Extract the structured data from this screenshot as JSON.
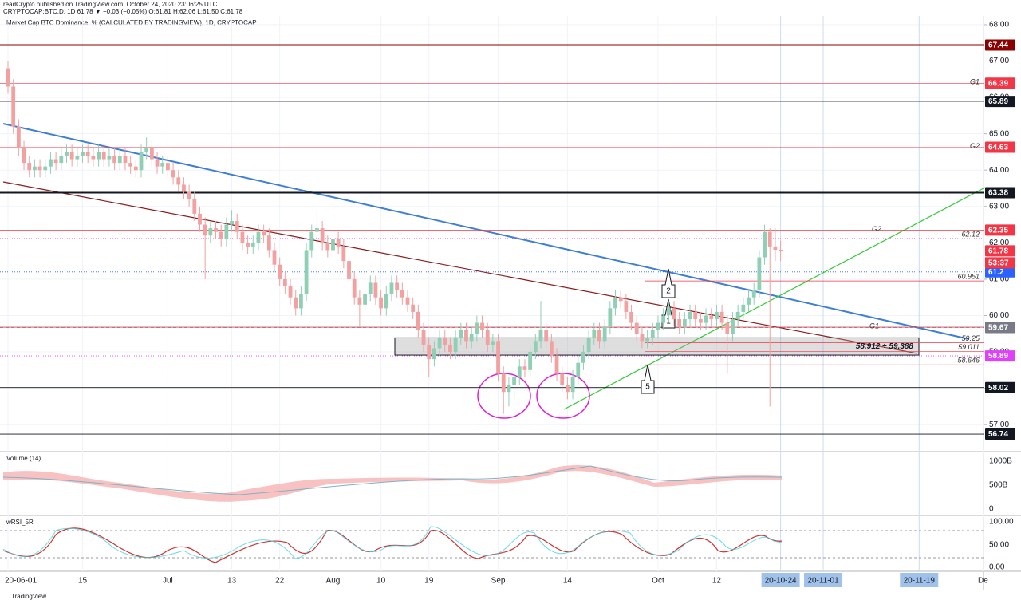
{
  "header": {
    "publisher": "readCrypto published on TradingView.com, October 24, 2020 23:06:25 UTC",
    "symbol_line": "CRYPTOCAP:BTC.D, 1D 61.78 ▼ −0.03 (−0.05%) O:61.81 H:62.06 L:61.50 C:61.78",
    "indicator": "Market Cap BTC Dominance, % (CALCULATED BY TRADINGVIEW), 1D, CRYPTOCAP"
  },
  "chart_data": {
    "type": "candlestick",
    "up_color": "#8fcfb5",
    "down_color": "#f2a0a0",
    "candles": [
      [
        66.8,
        67.0,
        66.1,
        66.3
      ],
      [
        66.3,
        66.5,
        65.0,
        65.2
      ],
      [
        65.2,
        65.4,
        64.4,
        64.6
      ],
      [
        64.6,
        64.8,
        64.0,
        64.2
      ],
      [
        64.2,
        64.4,
        63.8,
        64.0
      ],
      [
        64.0,
        64.3,
        63.8,
        64.1
      ],
      [
        64.1,
        64.3,
        63.8,
        64.0
      ],
      [
        64.0,
        64.3,
        63.8,
        64.1
      ],
      [
        64.1,
        64.5,
        63.9,
        64.3
      ],
      [
        64.3,
        64.5,
        64.0,
        64.2
      ],
      [
        64.2,
        64.6,
        64.0,
        64.4
      ],
      [
        64.4,
        64.7,
        64.2,
        64.5
      ],
      [
        64.5,
        64.7,
        64.1,
        64.3
      ],
      [
        64.3,
        64.6,
        64.1,
        64.4
      ],
      [
        64.4,
        64.7,
        64.2,
        64.5
      ],
      [
        64.5,
        64.7,
        64.2,
        64.4
      ],
      [
        64.4,
        64.6,
        64.1,
        64.3
      ],
      [
        64.3,
        64.7,
        64.1,
        64.5
      ],
      [
        64.5,
        64.7,
        64.1,
        64.3
      ],
      [
        64.3,
        64.6,
        64.1,
        64.4
      ],
      [
        64.4,
        64.6,
        64.0,
        64.2
      ],
      [
        64.2,
        64.6,
        64.0,
        64.4
      ],
      [
        64.4,
        64.6,
        64.0,
        64.2
      ],
      [
        64.2,
        64.4,
        63.9,
        64.1
      ],
      [
        64.1,
        64.3,
        63.8,
        64.0
      ],
      [
        64.0,
        64.7,
        63.8,
        64.5
      ],
      [
        64.5,
        64.9,
        64.3,
        64.6
      ],
      [
        64.6,
        64.8,
        64.1,
        64.3
      ],
      [
        64.3,
        64.5,
        63.9,
        64.1
      ],
      [
        64.1,
        64.4,
        63.9,
        64.2
      ],
      [
        64.2,
        64.4,
        63.8,
        64.0
      ],
      [
        64.0,
        64.2,
        63.6,
        63.8
      ],
      [
        63.8,
        64.0,
        63.4,
        63.6
      ],
      [
        63.6,
        63.8,
        63.2,
        63.4
      ],
      [
        63.4,
        63.6,
        63.0,
        63.2
      ],
      [
        63.2,
        63.4,
        62.6,
        62.8
      ],
      [
        62.8,
        63.0,
        62.3,
        62.5
      ],
      [
        62.5,
        62.7,
        61.0,
        62.2
      ],
      [
        62.2,
        62.6,
        62.0,
        62.4
      ],
      [
        62.4,
        62.6,
        62.1,
        62.3
      ],
      [
        62.3,
        62.5,
        61.9,
        62.1
      ],
      [
        62.1,
        62.7,
        61.9,
        62.5
      ],
      [
        62.5,
        62.9,
        62.3,
        62.6
      ],
      [
        62.6,
        62.8,
        62.1,
        62.3
      ],
      [
        62.3,
        62.5,
        61.8,
        62.0
      ],
      [
        62.0,
        62.2,
        61.7,
        61.9
      ],
      [
        61.9,
        62.2,
        61.7,
        62.0
      ],
      [
        62.0,
        62.5,
        61.8,
        62.3
      ],
      [
        62.3,
        62.5,
        62.0,
        62.2
      ],
      [
        62.2,
        62.4,
        61.6,
        61.8
      ],
      [
        61.8,
        62.0,
        61.2,
        61.4
      ],
      [
        61.4,
        61.6,
        60.8,
        61.0
      ],
      [
        61.0,
        61.2,
        60.6,
        60.8
      ],
      [
        60.8,
        61.0,
        60.3,
        60.5
      ],
      [
        60.5,
        60.7,
        60.0,
        60.2
      ],
      [
        60.2,
        60.8,
        60.0,
        60.6
      ],
      [
        60.6,
        62.0,
        60.4,
        61.8
      ],
      [
        61.8,
        62.5,
        61.6,
        62.3
      ],
      [
        62.3,
        62.9,
        62.1,
        62.4
      ],
      [
        62.4,
        62.6,
        61.8,
        62.0
      ],
      [
        62.0,
        62.2,
        61.6,
        61.8
      ],
      [
        61.8,
        62.3,
        61.6,
        62.1
      ],
      [
        62.1,
        62.3,
        61.7,
        61.9
      ],
      [
        61.9,
        62.1,
        61.3,
        61.5
      ],
      [
        61.5,
        61.7,
        60.8,
        61.0
      ],
      [
        61.0,
        61.2,
        60.3,
        60.5
      ],
      [
        60.5,
        60.7,
        59.7,
        60.3
      ],
      [
        60.3,
        60.8,
        60.1,
        60.6
      ],
      [
        60.6,
        61.1,
        60.4,
        60.9
      ],
      [
        60.9,
        61.1,
        60.3,
        60.5
      ],
      [
        60.5,
        60.7,
        60.0,
        60.2
      ],
      [
        60.2,
        60.8,
        60.0,
        60.6
      ],
      [
        60.6,
        61.1,
        60.4,
        60.9
      ],
      [
        60.9,
        61.1,
        60.5,
        60.7
      ],
      [
        60.7,
        60.9,
        60.3,
        60.5
      ],
      [
        60.5,
        60.7,
        60.1,
        60.3
      ],
      [
        60.3,
        60.5,
        59.9,
        60.1
      ],
      [
        60.1,
        60.3,
        59.4,
        59.6
      ],
      [
        59.6,
        59.8,
        59.0,
        59.2
      ],
      [
        59.2,
        59.4,
        58.3,
        58.8
      ],
      [
        58.8,
        59.3,
        58.6,
        59.1
      ],
      [
        59.1,
        59.6,
        58.9,
        59.4
      ],
      [
        59.4,
        59.6,
        59.0,
        59.2
      ],
      [
        59.2,
        59.4,
        58.8,
        59.0
      ],
      [
        59.0,
        59.6,
        58.8,
        59.4
      ],
      [
        59.4,
        59.8,
        59.2,
        59.6
      ],
      [
        59.6,
        59.8,
        59.1,
        59.3
      ],
      [
        59.3,
        59.7,
        59.1,
        59.5
      ],
      [
        59.5,
        60.0,
        59.3,
        59.8
      ],
      [
        59.8,
        60.0,
        59.4,
        59.6
      ],
      [
        59.6,
        59.8,
        59.0,
        59.2
      ],
      [
        59.2,
        59.5,
        59.0,
        59.3
      ],
      [
        59.3,
        59.5,
        58.2,
        58.4
      ],
      [
        58.4,
        58.6,
        57.3,
        57.9
      ],
      [
        57.9,
        58.3,
        57.5,
        58.1
      ],
      [
        58.1,
        58.5,
        57.7,
        58.3
      ],
      [
        58.3,
        58.8,
        58.1,
        58.6
      ],
      [
        58.6,
        58.8,
        58.3,
        58.5
      ],
      [
        58.5,
        59.2,
        58.3,
        59.0
      ],
      [
        59.0,
        59.5,
        58.8,
        59.3
      ],
      [
        59.3,
        60.4,
        59.1,
        59.6
      ],
      [
        59.6,
        59.8,
        59.1,
        59.3
      ],
      [
        59.3,
        59.5,
        58.7,
        58.9
      ],
      [
        58.9,
        59.1,
        58.2,
        58.4
      ],
      [
        58.4,
        58.6,
        57.9,
        58.1
      ],
      [
        58.1,
        58.3,
        57.7,
        57.9
      ],
      [
        57.9,
        58.5,
        57.7,
        58.3
      ],
      [
        58.3,
        58.9,
        58.1,
        58.7
      ],
      [
        58.7,
        59.2,
        58.5,
        59.0
      ],
      [
        59.0,
        59.6,
        58.8,
        59.4
      ],
      [
        59.4,
        59.8,
        59.2,
        59.6
      ],
      [
        59.6,
        59.8,
        59.1,
        59.3
      ],
      [
        59.3,
        59.9,
        59.1,
        59.7
      ],
      [
        59.7,
        60.4,
        59.5,
        60.2
      ],
      [
        60.2,
        60.7,
        60.0,
        60.5
      ],
      [
        60.5,
        60.7,
        60.2,
        60.4
      ],
      [
        60.4,
        60.6,
        59.9,
        60.1
      ],
      [
        60.1,
        60.3,
        59.6,
        59.8
      ],
      [
        59.8,
        60.0,
        59.3,
        59.5
      ],
      [
        59.5,
        59.7,
        59.1,
        59.3
      ],
      [
        59.3,
        59.6,
        59.1,
        59.4
      ],
      [
        59.4,
        59.8,
        59.2,
        59.6
      ],
      [
        59.6,
        60.0,
        59.4,
        59.8
      ],
      [
        59.8,
        60.2,
        59.6,
        60.0
      ],
      [
        60.0,
        60.4,
        59.8,
        60.2
      ],
      [
        60.2,
        60.4,
        59.7,
        59.9
      ],
      [
        59.9,
        60.1,
        59.5,
        59.7
      ],
      [
        59.7,
        60.1,
        59.5,
        59.9
      ],
      [
        59.9,
        60.3,
        59.7,
        60.1
      ],
      [
        60.1,
        60.3,
        59.7,
        59.9
      ],
      [
        59.9,
        60.1,
        59.6,
        59.8
      ],
      [
        59.8,
        60.2,
        59.6,
        60.0
      ],
      [
        60.0,
        60.2,
        59.7,
        59.9
      ],
      [
        59.9,
        60.3,
        59.7,
        60.1
      ],
      [
        60.1,
        60.3,
        59.6,
        59.8
      ],
      [
        59.8,
        60.0,
        58.4,
        59.5
      ],
      [
        59.5,
        60.1,
        59.3,
        59.9
      ],
      [
        59.9,
        60.3,
        59.7,
        60.1
      ],
      [
        60.1,
        60.5,
        59.9,
        60.3
      ],
      [
        60.3,
        60.7,
        60.1,
        60.5
      ],
      [
        60.5,
        60.9,
        60.3,
        60.7
      ],
      [
        60.7,
        61.8,
        60.5,
        61.6
      ],
      [
        61.6,
        62.5,
        61.4,
        62.3
      ],
      [
        62.3,
        62.4,
        57.5,
        61.9
      ],
      [
        61.9,
        62.4,
        61.5,
        61.81
      ],
      [
        61.81,
        62.06,
        61.5,
        61.78
      ]
    ],
    "ylim": [
      56.28,
      68.24
    ],
    "yticks": [
      {
        "value": 68,
        "label": "68.00"
      },
      {
        "value": 67,
        "label": "67.00"
      },
      {
        "value": 66,
        "label": "66.00"
      },
      {
        "value": 65,
        "label": "65.00"
      },
      {
        "value": 64,
        "label": "64.00"
      },
      {
        "value": 63,
        "label": "63.00"
      },
      {
        "value": 62,
        "label": "62.00"
      },
      {
        "value": 61,
        "label": "61.00"
      },
      {
        "value": 60,
        "label": "60.00"
      },
      {
        "value": 59,
        "label": "59.00"
      },
      {
        "value": 58,
        "label": "58.00"
      },
      {
        "value": 57,
        "label": "57.00"
      }
    ],
    "levels": [
      {
        "value": 67.44,
        "color": "#8b0000",
        "width": 2,
        "style": "solid"
      },
      {
        "value": 66.39,
        "color": "#f23645",
        "width": 0.6,
        "style": "solid"
      },
      {
        "value": 65.89,
        "color": "#131722",
        "width": 0.6,
        "style": "solid"
      },
      {
        "value": 64.63,
        "color": "#f23645",
        "width": 0.6,
        "style": "solid"
      },
      {
        "value": 63.38,
        "color": "#131722",
        "width": 2,
        "style": "solid"
      },
      {
        "value": 62.35,
        "color": "#f23645",
        "width": 0.8,
        "style": "solid"
      },
      {
        "value": 61.78,
        "color": "#f23645",
        "width": 0,
        "style": "solid"
      },
      {
        "value": 61.2,
        "color": "#2962ff",
        "width": 0.8,
        "style": "dotted"
      },
      {
        "value": 59.68,
        "color": "#f23645",
        "width": 0.8,
        "style": "solid"
      },
      {
        "value": 59.67,
        "color": "#787b86",
        "width": 0.8,
        "style": "dashed"
      },
      {
        "value": 58.89,
        "color": "#e040fb",
        "width": 0.8,
        "style": "dotted"
      },
      {
        "value": 58.02,
        "color": "#131722",
        "width": 0.8,
        "style": "solid"
      },
      {
        "value": 56.74,
        "color": "#131722",
        "width": 0.8,
        "style": "solid"
      }
    ],
    "countdown": "53:37",
    "line_labels": [
      {
        "value": 62.12,
        "color": "#e040fb"
      },
      {
        "value": 60.951,
        "color": "#f23645"
      },
      {
        "value": 59.25,
        "color": "#f23645"
      },
      {
        "value": 59.011,
        "color": "#f23645"
      },
      {
        "value": 58.646,
        "color": "#f23645"
      }
    ],
    "notes": [
      {
        "text": "G1",
        "value": 66.39
      },
      {
        "text": "G2",
        "value": 64.63
      },
      {
        "text": "G2",
        "value": 62.35
      },
      {
        "text": "G1",
        "value": 59.68
      }
    ],
    "zone": {
      "low": 58.912,
      "high": 59.388,
      "label": "58.912 ÷ 59.388"
    },
    "callouts": [
      "2",
      "1",
      "5"
    ],
    "x_labels": [
      "20-06-01",
      "15",
      "Jul",
      "13",
      "22",
      "Aug",
      "10",
      "19",
      "Sep",
      "14",
      "Oct",
      "12",
      "20-10-24",
      "20-11-01",
      "20-11-19",
      "De"
    ]
  },
  "volume": {
    "title": "Volume (14)",
    "ticks": [
      "1000B",
      "500B",
      "0"
    ]
  },
  "rsi": {
    "title": "wRSI_5R",
    "ticks": [
      "100.00",
      "50.00",
      "0.00"
    ]
  },
  "footer": "TradingView"
}
